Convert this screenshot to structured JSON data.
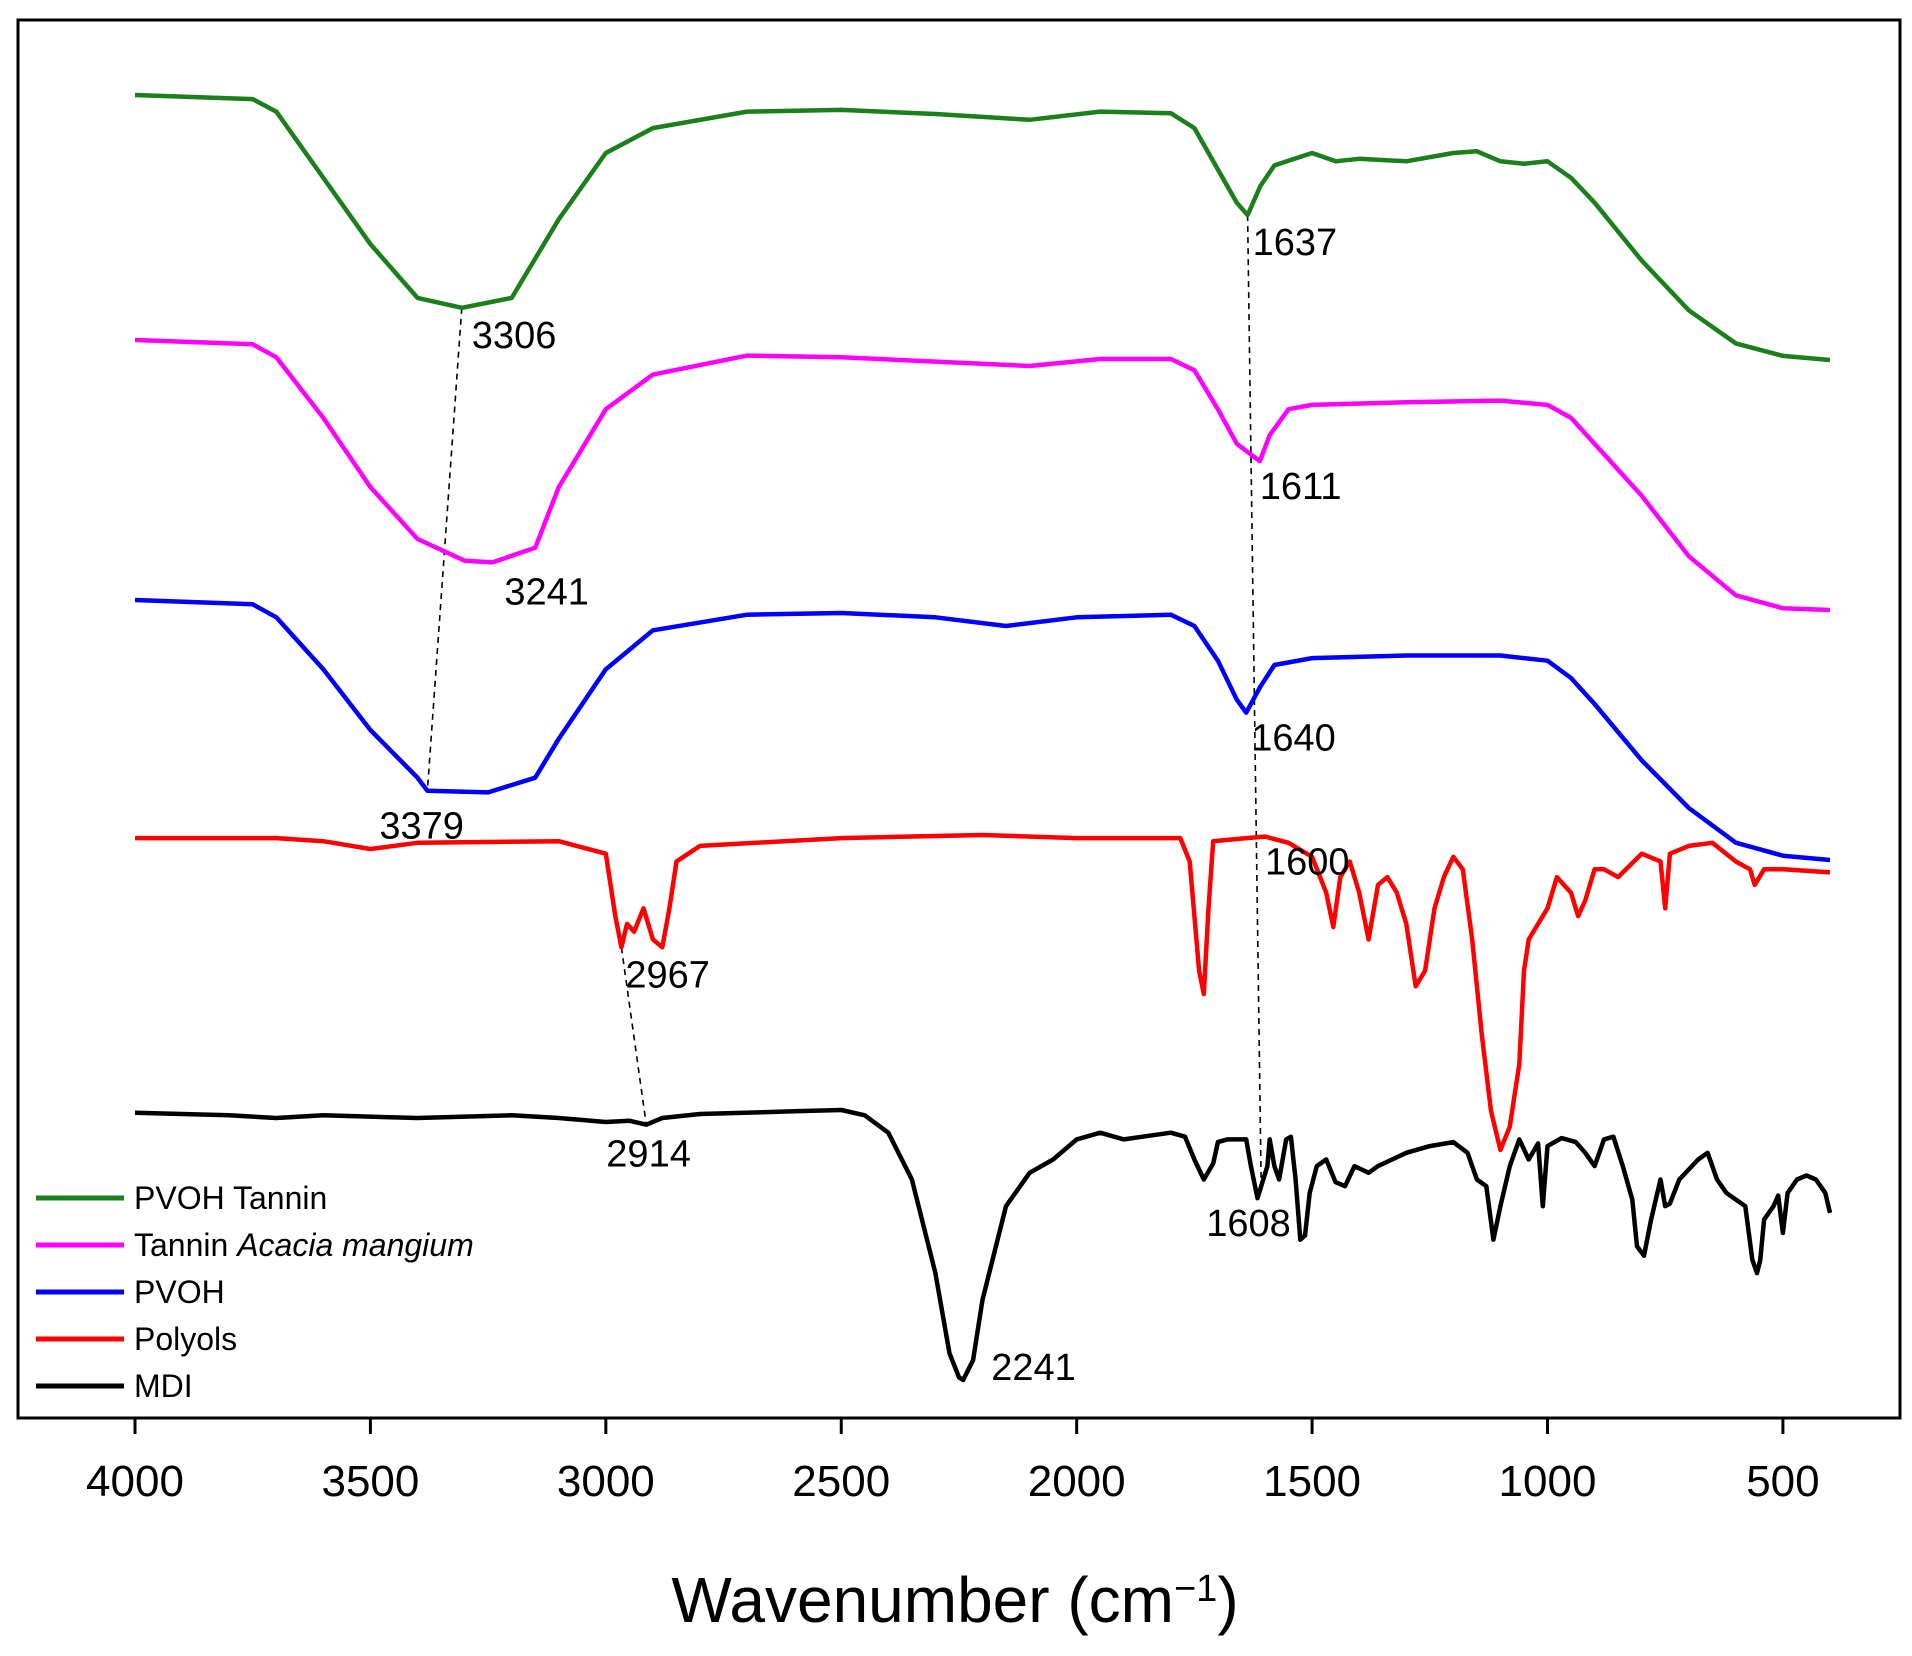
{
  "chart_data": {
    "type": "line",
    "xlabel": "Wavenumber (cm",
    "xlabel_sup": "−1",
    "xlabel_tail": ")",
    "ylabel": "",
    "xlim": [
      4000,
      400
    ],
    "x_reversed": true,
    "y_ticks_shown": false,
    "grid": false,
    "legend_position": "bottom-left",
    "x_ticks": [
      4000,
      3500,
      3000,
      2500,
      2000,
      1500,
      1000,
      500
    ],
    "x_tick_labels": [
      "4000",
      "3500",
      "3000",
      "2500",
      "2000",
      "1500",
      "1000",
      "500"
    ],
    "y_units": "relative transmittance, series vertically offset",
    "ylim": [
      0,
      100
    ],
    "series": [
      {
        "name": "PVOH Tannin",
        "color": "#1b7f1b",
        "points": [
          [
            4000,
            97
          ],
          [
            3750,
            96.5
          ],
          [
            3700,
            95
          ],
          [
            3600,
            87
          ],
          [
            3500,
            79
          ],
          [
            3400,
            72.5
          ],
          [
            3306,
            71.3
          ],
          [
            3200,
            72.5
          ],
          [
            3100,
            82
          ],
          [
            3000,
            90
          ],
          [
            2900,
            93
          ],
          [
            2700,
            95
          ],
          [
            2500,
            95.2
          ],
          [
            2300,
            94.7
          ],
          [
            2100,
            94
          ],
          [
            1950,
            95
          ],
          [
            1800,
            94.8
          ],
          [
            1750,
            93
          ],
          [
            1700,
            88
          ],
          [
            1660,
            84
          ],
          [
            1637,
            82.5
          ],
          [
            1610,
            86
          ],
          [
            1580,
            88.5
          ],
          [
            1500,
            90
          ],
          [
            1450,
            89
          ],
          [
            1400,
            89.3
          ],
          [
            1300,
            89
          ],
          [
            1200,
            90
          ],
          [
            1150,
            90.2
          ],
          [
            1100,
            89
          ],
          [
            1050,
            88.7
          ],
          [
            1000,
            89
          ],
          [
            950,
            87
          ],
          [
            900,
            84
          ],
          [
            800,
            77
          ],
          [
            700,
            71
          ],
          [
            600,
            67
          ],
          [
            500,
            65.5
          ],
          [
            400,
            65
          ]
        ]
      },
      {
        "name": "Tannin Acacia mangium",
        "description_style": "italic",
        "color": "#ff00ff",
        "points": [
          [
            4000,
            78
          ],
          [
            3750,
            77.5
          ],
          [
            3700,
            76
          ],
          [
            3600,
            69
          ],
          [
            3500,
            61
          ],
          [
            3400,
            55
          ],
          [
            3300,
            52.5
          ],
          [
            3241,
            52.3
          ],
          [
            3150,
            54
          ],
          [
            3100,
            61
          ],
          [
            3000,
            70
          ],
          [
            2900,
            74
          ],
          [
            2700,
            76.2
          ],
          [
            2500,
            76
          ],
          [
            2300,
            75.5
          ],
          [
            2100,
            75
          ],
          [
            1950,
            75.8
          ],
          [
            1800,
            75.8
          ],
          [
            1750,
            74.5
          ],
          [
            1700,
            70
          ],
          [
            1660,
            66
          ],
          [
            1611,
            64
          ],
          [
            1590,
            67
          ],
          [
            1550,
            70
          ],
          [
            1500,
            70.5
          ],
          [
            1300,
            70.8
          ],
          [
            1100,
            71
          ],
          [
            1000,
            70.5
          ],
          [
            950,
            69
          ],
          [
            900,
            66
          ],
          [
            800,
            60
          ],
          [
            700,
            53
          ],
          [
            600,
            48.5
          ],
          [
            500,
            47
          ],
          [
            400,
            46.8
          ]
        ]
      },
      {
        "name": "PVOH",
        "color": "#0000ff",
        "points": [
          [
            4000,
            59
          ],
          [
            3750,
            58.5
          ],
          [
            3700,
            57
          ],
          [
            3600,
            51
          ],
          [
            3500,
            44
          ],
          [
            3400,
            38.5
          ],
          [
            3379,
            37
          ],
          [
            3250,
            36.8
          ],
          [
            3150,
            38.5
          ],
          [
            3100,
            43
          ],
          [
            3000,
            51
          ],
          [
            2900,
            55.5
          ],
          [
            2700,
            57.3
          ],
          [
            2500,
            57.5
          ],
          [
            2300,
            57
          ],
          [
            2150,
            56
          ],
          [
            2000,
            57
          ],
          [
            1800,
            57.3
          ],
          [
            1750,
            56
          ],
          [
            1700,
            52
          ],
          [
            1660,
            47.5
          ],
          [
            1640,
            46
          ],
          [
            1610,
            49
          ],
          [
            1580,
            51.5
          ],
          [
            1500,
            52.3
          ],
          [
            1300,
            52.6
          ],
          [
            1100,
            52.6
          ],
          [
            1000,
            52
          ],
          [
            950,
            50
          ],
          [
            900,
            47
          ],
          [
            800,
            40.5
          ],
          [
            700,
            35
          ],
          [
            600,
            31
          ],
          [
            500,
            29.5
          ],
          [
            400,
            29
          ]
        ]
      },
      {
        "name": "Polyols",
        "color": "#ff0000",
        "points": [
          [
            4000,
            39.5
          ],
          [
            3700,
            39.5
          ],
          [
            3600,
            39.3
          ],
          [
            3500,
            38.8
          ],
          [
            3400,
            39.2
          ],
          [
            3100,
            39.3
          ],
          [
            3000,
            38.5
          ],
          [
            2980,
            34.5
          ],
          [
            2967,
            32.5
          ],
          [
            2955,
            34
          ],
          [
            2940,
            33.5
          ],
          [
            2920,
            35
          ],
          [
            2900,
            33
          ],
          [
            2880,
            32.5
          ],
          [
            2865,
            35
          ],
          [
            2850,
            38
          ],
          [
            2800,
            39
          ],
          [
            2500,
            39.5
          ],
          [
            2200,
            39.7
          ],
          [
            2000,
            39.5
          ],
          [
            1780,
            39.5
          ],
          [
            1760,
            38
          ],
          [
            1740,
            31
          ],
          [
            1730,
            29.5
          ],
          [
            1720,
            35
          ],
          [
            1710,
            39.3
          ],
          [
            1640,
            39.5
          ],
          [
            1600,
            39.6
          ],
          [
            1550,
            39.2
          ],
          [
            1500,
            38.3
          ],
          [
            1470,
            36
          ],
          [
            1455,
            33.8
          ],
          [
            1440,
            37
          ],
          [
            1420,
            38
          ],
          [
            1400,
            36
          ],
          [
            1380,
            33
          ],
          [
            1360,
            36.5
          ],
          [
            1340,
            37
          ],
          [
            1320,
            36
          ],
          [
            1300,
            34
          ],
          [
            1280,
            30
          ],
          [
            1260,
            31
          ],
          [
            1240,
            35
          ],
          [
            1220,
            37
          ],
          [
            1200,
            38.3
          ],
          [
            1180,
            37.5
          ],
          [
            1160,
            33
          ],
          [
            1140,
            27
          ],
          [
            1120,
            22
          ],
          [
            1100,
            19.5
          ],
          [
            1080,
            21
          ],
          [
            1070,
            23
          ],
          [
            1060,
            25
          ],
          [
            1050,
            31
          ],
          [
            1040,
            33
          ],
          [
            1000,
            35
          ],
          [
            980,
            37
          ],
          [
            950,
            36
          ],
          [
            935,
            34.5
          ],
          [
            920,
            35.5
          ],
          [
            900,
            37.5
          ],
          [
            880,
            37.5
          ],
          [
            850,
            37
          ],
          [
            800,
            38.5
          ],
          [
            760,
            38
          ],
          [
            750,
            35
          ],
          [
            740,
            38.5
          ],
          [
            700,
            39
          ],
          [
            650,
            39.2
          ],
          [
            600,
            38
          ],
          [
            570,
            37.5
          ],
          [
            560,
            36.5
          ],
          [
            540,
            37.5
          ],
          [
            500,
            37.5
          ],
          [
            400,
            37.3
          ]
        ]
      },
      {
        "name": "MDI",
        "color": "#000000",
        "points": [
          [
            4000,
            20
          ],
          [
            3800,
            19.8
          ],
          [
            3700,
            19.6
          ],
          [
            3600,
            19.8
          ],
          [
            3400,
            19.6
          ],
          [
            3200,
            19.8
          ],
          [
            3100,
            19.6
          ],
          [
            3000,
            19.3
          ],
          [
            2950,
            19.4
          ],
          [
            2914,
            19.1
          ],
          [
            2880,
            19.6
          ],
          [
            2800,
            19.9
          ],
          [
            2600,
            20.1
          ],
          [
            2500,
            20.2
          ],
          [
            2450,
            19.8
          ],
          [
            2400,
            18.5
          ],
          [
            2350,
            15
          ],
          [
            2300,
            8
          ],
          [
            2270,
            2
          ],
          [
            2250,
            0.2
          ],
          [
            2241,
            0
          ],
          [
            2220,
            1.5
          ],
          [
            2200,
            6
          ],
          [
            2150,
            13
          ],
          [
            2100,
            15.5
          ],
          [
            2050,
            16.5
          ],
          [
            2000,
            18
          ],
          [
            1950,
            18.5
          ],
          [
            1900,
            18
          ],
          [
            1800,
            18.5
          ],
          [
            1770,
            18.2
          ],
          [
            1750,
            16.5
          ],
          [
            1730,
            15
          ],
          [
            1710,
            16.2
          ],
          [
            1700,
            17.8
          ],
          [
            1680,
            18
          ],
          [
            1640,
            18
          ],
          [
            1630,
            16
          ],
          [
            1616,
            13.6
          ],
          [
            1608,
            14.5
          ],
          [
            1595,
            16
          ],
          [
            1590,
            18
          ],
          [
            1580,
            16
          ],
          [
            1570,
            15
          ],
          [
            1555,
            18
          ],
          [
            1545,
            18.2
          ],
          [
            1535,
            15
          ],
          [
            1525,
            10.5
          ],
          [
            1515,
            10.8
          ],
          [
            1505,
            14
          ],
          [
            1490,
            16
          ],
          [
            1470,
            16.5
          ],
          [
            1450,
            14.8
          ],
          [
            1430,
            14.5
          ],
          [
            1410,
            16
          ],
          [
            1380,
            15.5
          ],
          [
            1360,
            16
          ],
          [
            1330,
            16.5
          ],
          [
            1300,
            17
          ],
          [
            1250,
            17.5
          ],
          [
            1200,
            17.8
          ],
          [
            1170,
            17
          ],
          [
            1150,
            15
          ],
          [
            1130,
            14.5
          ],
          [
            1115,
            10.5
          ],
          [
            1100,
            13
          ],
          [
            1080,
            16
          ],
          [
            1060,
            18
          ],
          [
            1040,
            16.5
          ],
          [
            1020,
            17.7
          ],
          [
            1010,
            13
          ],
          [
            1000,
            17.5
          ],
          [
            970,
            18.1
          ],
          [
            940,
            17.8
          ],
          [
            920,
            17
          ],
          [
            900,
            16
          ],
          [
            880,
            18
          ],
          [
            860,
            18.2
          ],
          [
            840,
            16
          ],
          [
            820,
            13.5
          ],
          [
            810,
            10
          ],
          [
            795,
            9.3
          ],
          [
            780,
            12
          ],
          [
            760,
            15
          ],
          [
            750,
            13
          ],
          [
            740,
            13.2
          ],
          [
            720,
            15
          ],
          [
            680,
            16.5
          ],
          [
            660,
            17
          ],
          [
            640,
            15
          ],
          [
            620,
            14
          ],
          [
            600,
            13.5
          ],
          [
            580,
            13
          ],
          [
            565,
            9
          ],
          [
            555,
            8
          ],
          [
            548,
            9
          ],
          [
            540,
            12
          ],
          [
            520,
            13
          ],
          [
            510,
            13.8
          ],
          [
            500,
            11
          ],
          [
            490,
            14
          ],
          [
            470,
            15
          ],
          [
            450,
            15.3
          ],
          [
            430,
            15
          ],
          [
            410,
            14
          ],
          [
            400,
            12.5
          ]
        ]
      }
    ],
    "annotations": [
      {
        "series": "PVOH Tannin",
        "label": "3306",
        "x": 3306
      },
      {
        "series": "PVOH Tannin",
        "label": "1637",
        "x": 1637
      },
      {
        "series": "Tannin Acacia mangium",
        "label": "3241",
        "x": 3241
      },
      {
        "series": "Tannin Acacia mangium",
        "label": "1611",
        "x": 1611
      },
      {
        "series": "PVOH",
        "label": "3379",
        "x": 3379
      },
      {
        "series": "PVOH",
        "label": "1640",
        "x": 1640
      },
      {
        "series": "Polyols",
        "label": "2967",
        "x": 2967
      },
      {
        "series": "Polyols",
        "label": "1600",
        "x": 1600
      },
      {
        "series": "MDI",
        "label": "2914",
        "x": 2914
      },
      {
        "series": "MDI",
        "label": "1608",
        "x": 1608
      },
      {
        "series": "MDI",
        "label": "2241",
        "x": 2241
      }
    ],
    "guide_lines": [
      {
        "from": "3306",
        "to": "3379"
      },
      {
        "from": "1637",
        "to": "1608"
      },
      {
        "from": "2967",
        "to": "2914"
      }
    ],
    "legend": [
      {
        "label": "PVOH Tannin",
        "color": "#1b7f1b"
      },
      {
        "label": "Tannin ",
        "label_italic": "Acacia mangium",
        "color": "#ff00ff"
      },
      {
        "label": "PVOH",
        "color": "#0000ff"
      },
      {
        "label": "Polyols",
        "color": "#ff0000"
      },
      {
        "label": "MDI",
        "color": "#000000"
      }
    ]
  }
}
